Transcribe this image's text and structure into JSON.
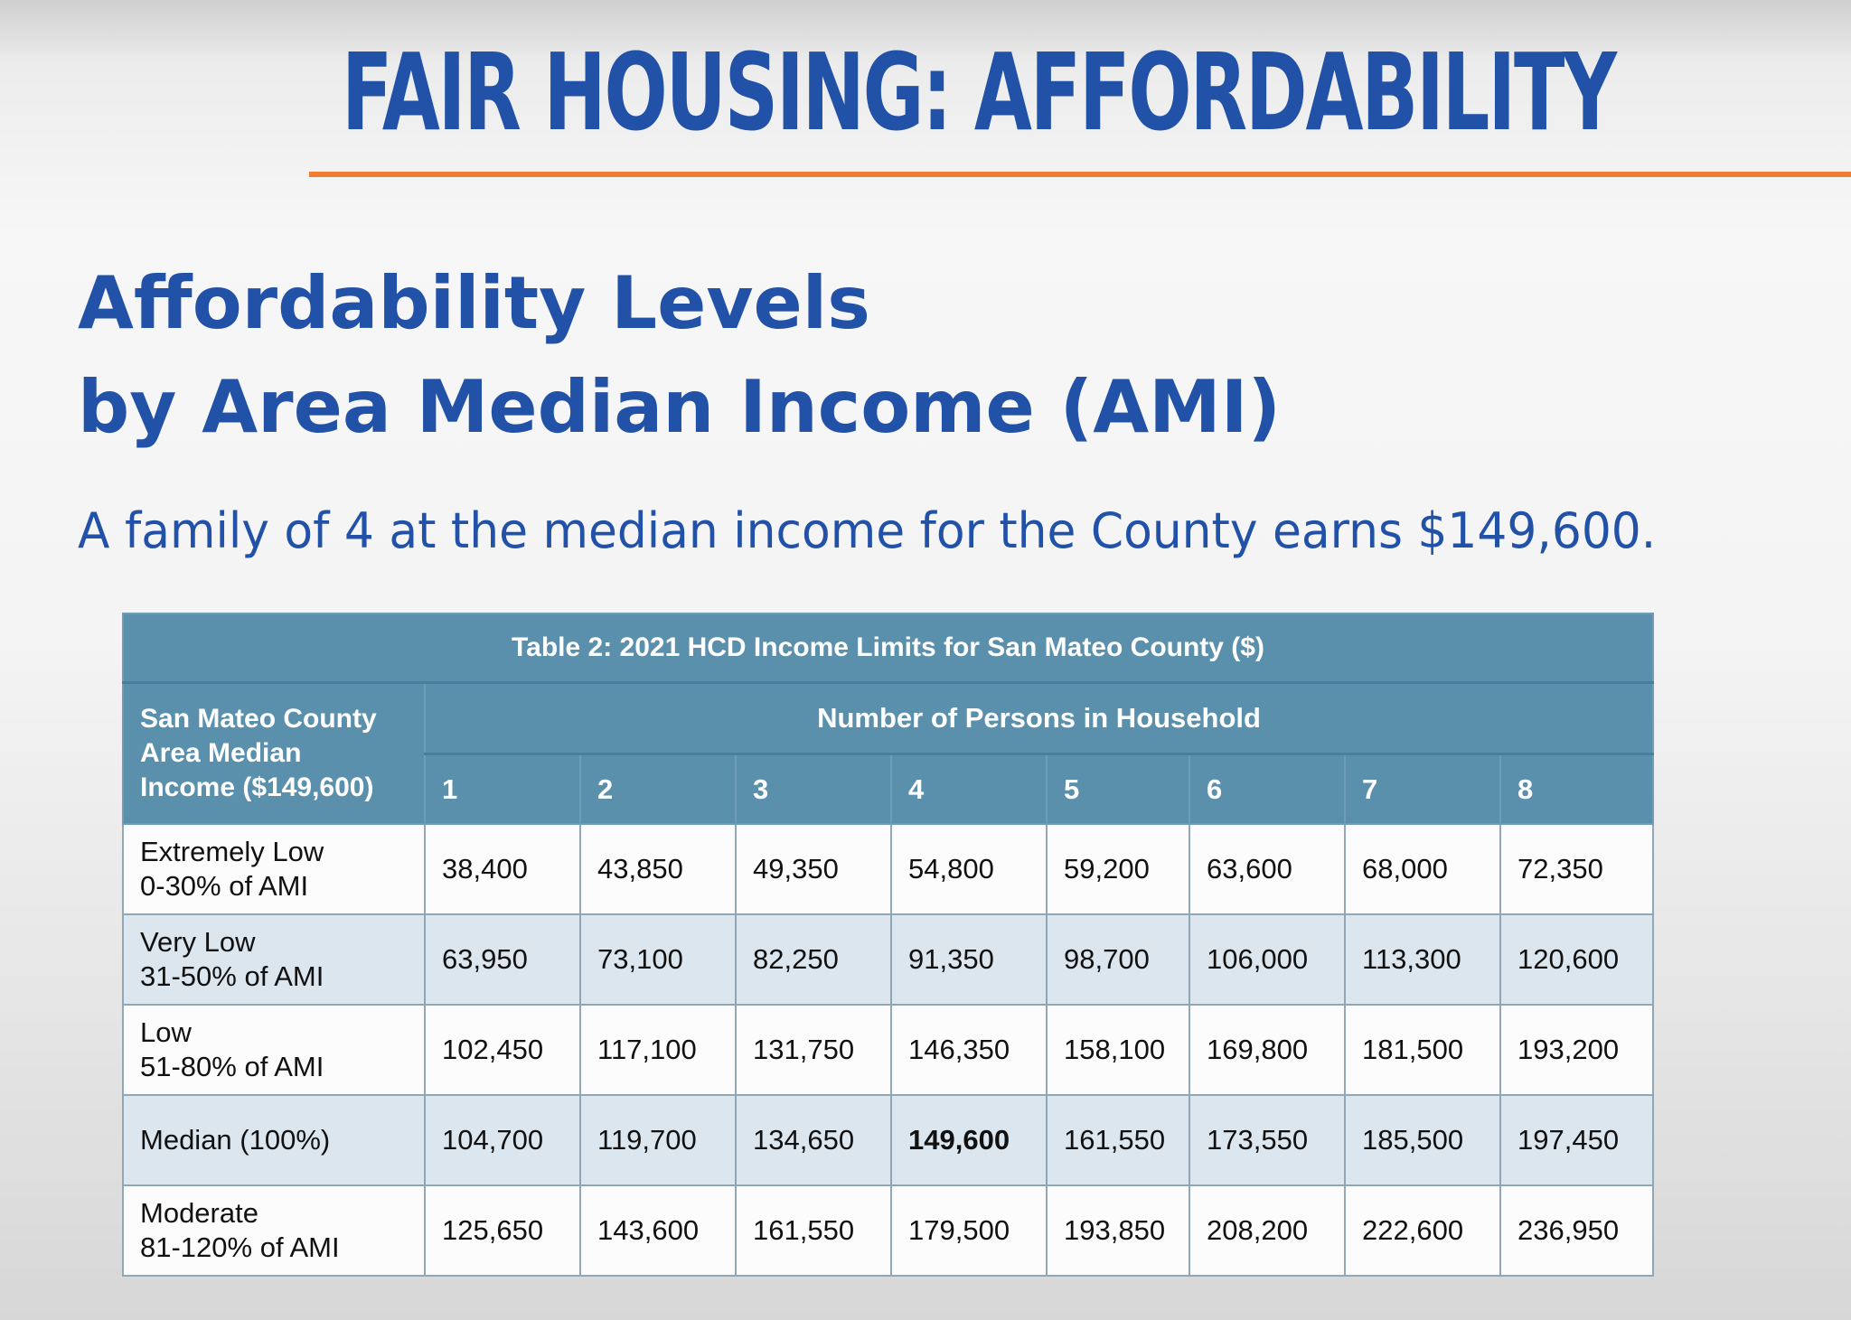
{
  "header": {
    "banner": "FAIR HOUSING: AFFORDABILITY",
    "title_line1": "Affordability Levels",
    "title_line2": "by Area Median Income (AMI)",
    "subtitle": "A family of 4 at the median income for the County earns $149,600."
  },
  "table": {
    "caption": "Table 2: 2021 HCD Income Limits for San Mateo County ($)",
    "row_header": [
      "San Mateo County",
      "Area Median",
      "Income ($149,600)"
    ],
    "group_header": "Number of Persons in Household",
    "columns": [
      "1",
      "2",
      "3",
      "4",
      "5",
      "6",
      "7",
      "8"
    ],
    "rows": [
      {
        "label": [
          "Extremely Low",
          "0-30% of AMI"
        ],
        "values": [
          "38,400",
          "43,850",
          "49,350",
          "54,800",
          "59,200",
          "63,600",
          "68,000",
          "72,350"
        ]
      },
      {
        "label": [
          "Very Low",
          "31-50% of AMI"
        ],
        "values": [
          "63,950",
          "73,100",
          "82,250",
          "91,350",
          "98,700",
          "106,000",
          "113,300",
          "120,600"
        ]
      },
      {
        "label": [
          "Low",
          "51-80% of AMI"
        ],
        "values": [
          "102,450",
          "117,100",
          "131,750",
          "146,350",
          "158,100",
          "169,800",
          "181,500",
          "193,200"
        ]
      },
      {
        "label": [
          "Median (100%)"
        ],
        "values": [
          "104,700",
          "119,700",
          "134,650",
          "149,600",
          "161,550",
          "173,550",
          "185,500",
          "197,450"
        ]
      },
      {
        "label": [
          "Moderate",
          "81-120% of AMI"
        ],
        "values": [
          "125,650",
          "143,600",
          "161,550",
          "179,500",
          "193,850",
          "208,200",
          "222,600",
          "236,950"
        ]
      }
    ]
  },
  "colors": {
    "title_blue": "#2251a8",
    "accent_orange": "#ef7d34",
    "table_header": "#5b90ad",
    "row_shade": "#dce6ee"
  }
}
